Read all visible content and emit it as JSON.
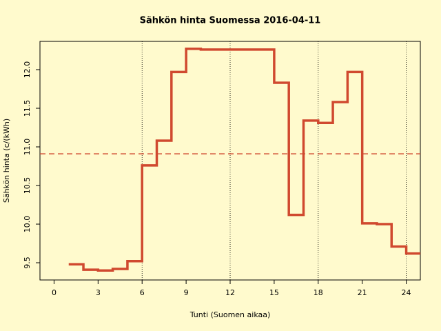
{
  "chart_data": {
    "type": "step",
    "title": "Sähkön hinta Suomessa 2016-04-11",
    "x_label": "Tunti (Suomen aikaa)",
    "y_label": "Sähkön hinta (c/(kWh)",
    "x": [
      1,
      2,
      3,
      4,
      5,
      6,
      7,
      8,
      9,
      10,
      11,
      12,
      13,
      14,
      15,
      16,
      17,
      18,
      19,
      20,
      21,
      22,
      23,
      24,
      25
    ],
    "values": [
      9.48,
      9.41,
      9.4,
      9.42,
      9.52,
      10.76,
      11.08,
      11.97,
      12.27,
      12.26,
      12.26,
      12.26,
      12.26,
      12.26,
      11.83,
      10.12,
      11.34,
      11.31,
      11.58,
      11.97,
      10.01,
      10.0,
      9.71,
      9.62,
      9.62
    ],
    "color": "#d0492f",
    "xlim": [
      -0.96,
      24.96
    ],
    "xticks": [
      0,
      3,
      6,
      9,
      12,
      15,
      18,
      21,
      24
    ],
    "ylim": [
      9.277,
      12.366
    ],
    "yticks": [
      9.5,
      {
        "value": 10,
        "label": "10.0"
      },
      10.5,
      {
        "value": 11,
        "label": "11.0"
      },
      11.5,
      {
        "value": 12,
        "label": "12.0"
      }
    ],
    "mean_line": 10.91,
    "mean_color": "#d0492f",
    "vertical_lines": [
      6,
      12,
      18,
      24
    ]
  }
}
